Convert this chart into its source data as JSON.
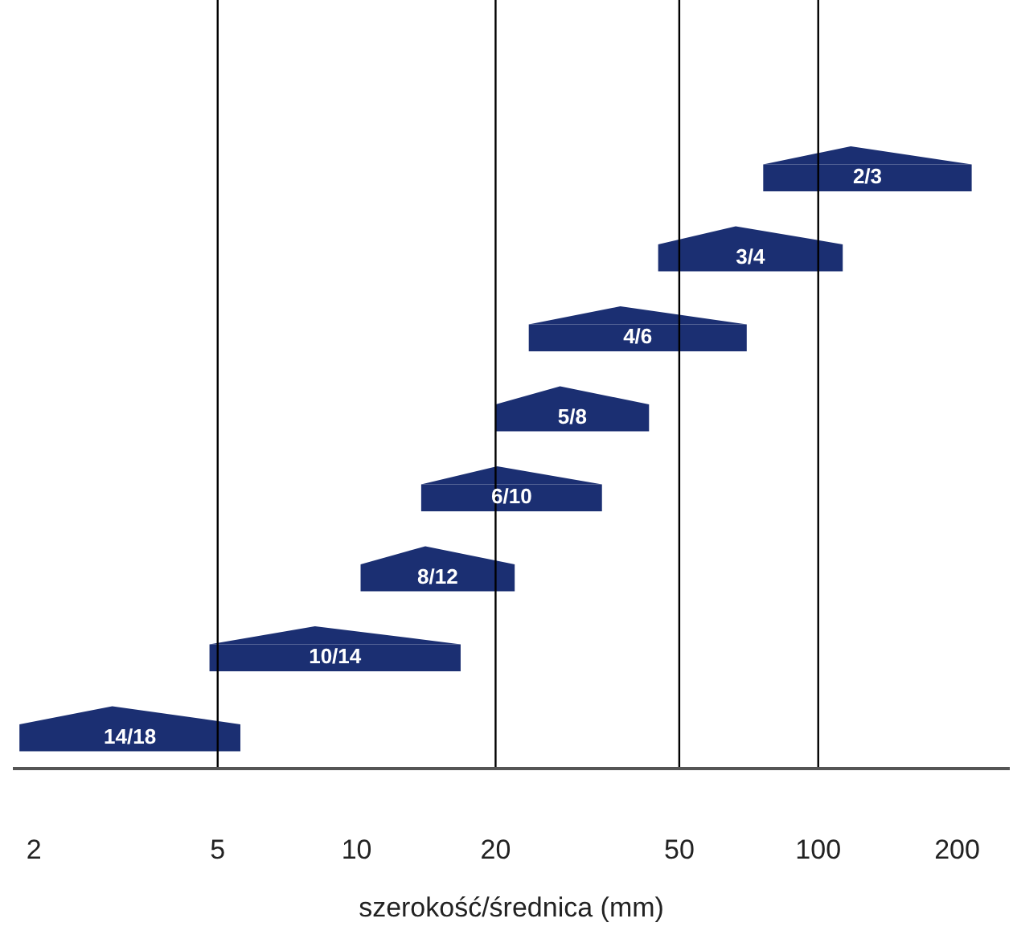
{
  "chart_data": {
    "type": "bar",
    "orientation": "horizontal",
    "xlabel": "szerokość/średnica (mm)",
    "categories": [
      "2/3",
      "3/4",
      "4/6",
      "5/8",
      "6/10",
      "8/12",
      "10/14",
      "14/18"
    ],
    "base": [
      76,
      45,
      23.6,
      20,
      13.8,
      10.2,
      4.8,
      1.86
    ],
    "values": [
      139,
      68,
      46.4,
      23,
      20.2,
      11.8,
      12,
      3.74
    ],
    "color": "#1b2f72",
    "log": "x",
    "xlim": [
      1.8,
      260
    ],
    "xticks": [
      2,
      5,
      10,
      20,
      50,
      100,
      200
    ],
    "ref_lines": [
      {
        "axis": "x",
        "value": 5,
        "color": "#000000"
      },
      {
        "axis": "x",
        "value": 20,
        "color": "#000000"
      },
      {
        "axis": "x",
        "value": 50,
        "color": "#000000"
      },
      {
        "axis": "x",
        "value": 100,
        "color": "#000000"
      }
    ],
    "grid": false,
    "tick_labels": "x"
  }
}
